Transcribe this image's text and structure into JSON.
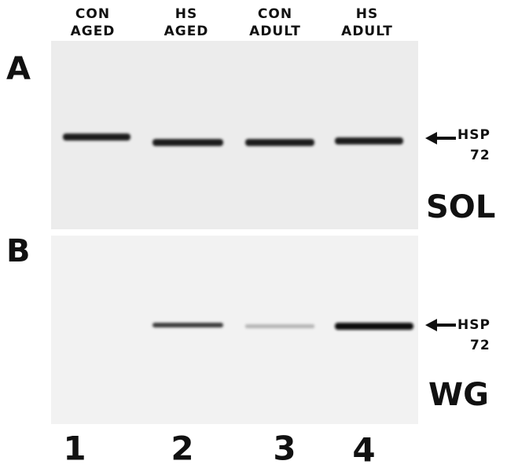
{
  "lanes": [
    {
      "line1": "CON",
      "line2": "AGED"
    },
    {
      "line1": "HS",
      "line2": "AGED"
    },
    {
      "line1": "CON",
      "line2": "ADULT"
    },
    {
      "line1": "HS",
      "line2": "ADULT"
    }
  ],
  "panels": [
    {
      "label": "A",
      "marker": {
        "name": "HSP",
        "size": "72"
      },
      "tissue": "SOL"
    },
    {
      "label": "B",
      "marker": {
        "name": "HSP",
        "size": "72"
      },
      "tissue": "WG"
    }
  ],
  "lane_numbers": [
    "1",
    "2",
    "3",
    "4"
  ]
}
